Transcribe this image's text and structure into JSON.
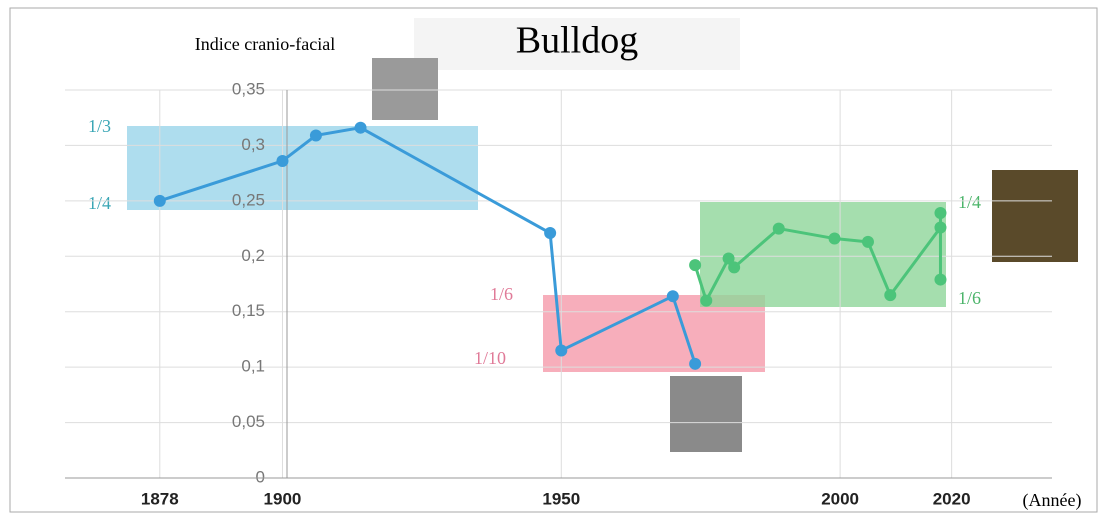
{
  "chart_data": {
    "type": "line",
    "title": "Bulldog",
    "y_label": "Indice cranio-facial",
    "x_label": "(Année)",
    "xlim": [
      1861,
      2038
    ],
    "xticks": [
      1878,
      1900,
      1950,
      2000,
      2020
    ],
    "ylim": [
      0,
      0.35
    ],
    "yticks": [
      0,
      {
        "value": 0.05,
        "label": "0,05"
      },
      {
        "value": 0.1,
        "label": "0,1"
      },
      {
        "value": 0.15,
        "label": "0,15"
      },
      {
        "value": 0.2,
        "label": "0,2"
      },
      {
        "value": 0.25,
        "label": "0,25"
      },
      {
        "value": 0.3,
        "label": "0,3"
      },
      {
        "value": 0.35,
        "label": "0,35"
      }
    ],
    "grid": true,
    "series": [
      {
        "color": "#3a9bd9",
        "x": [
          1878,
          1900,
          1906,
          1914,
          1948,
          1950,
          1970,
          1974
        ],
        "values": [
          0.25,
          0.286,
          0.309,
          0.316,
          0.221,
          0.115,
          0.164,
          0.103
        ]
      },
      {
        "color": "#4cc47a",
        "x": [
          1974,
          1976,
          1980,
          1981,
          1989,
          1999,
          2005,
          2009,
          2018,
          2018,
          2018
        ],
        "values": [
          0.192,
          0.16,
          0.198,
          0.19,
          0.225,
          0.216,
          0.213,
          0.165,
          0.226,
          0.239,
          0.179
        ]
      }
    ],
    "ratio_labels": [
      "1/3",
      "1/4",
      "1/6",
      "1/10",
      "1/4",
      "1/6"
    ]
  }
}
